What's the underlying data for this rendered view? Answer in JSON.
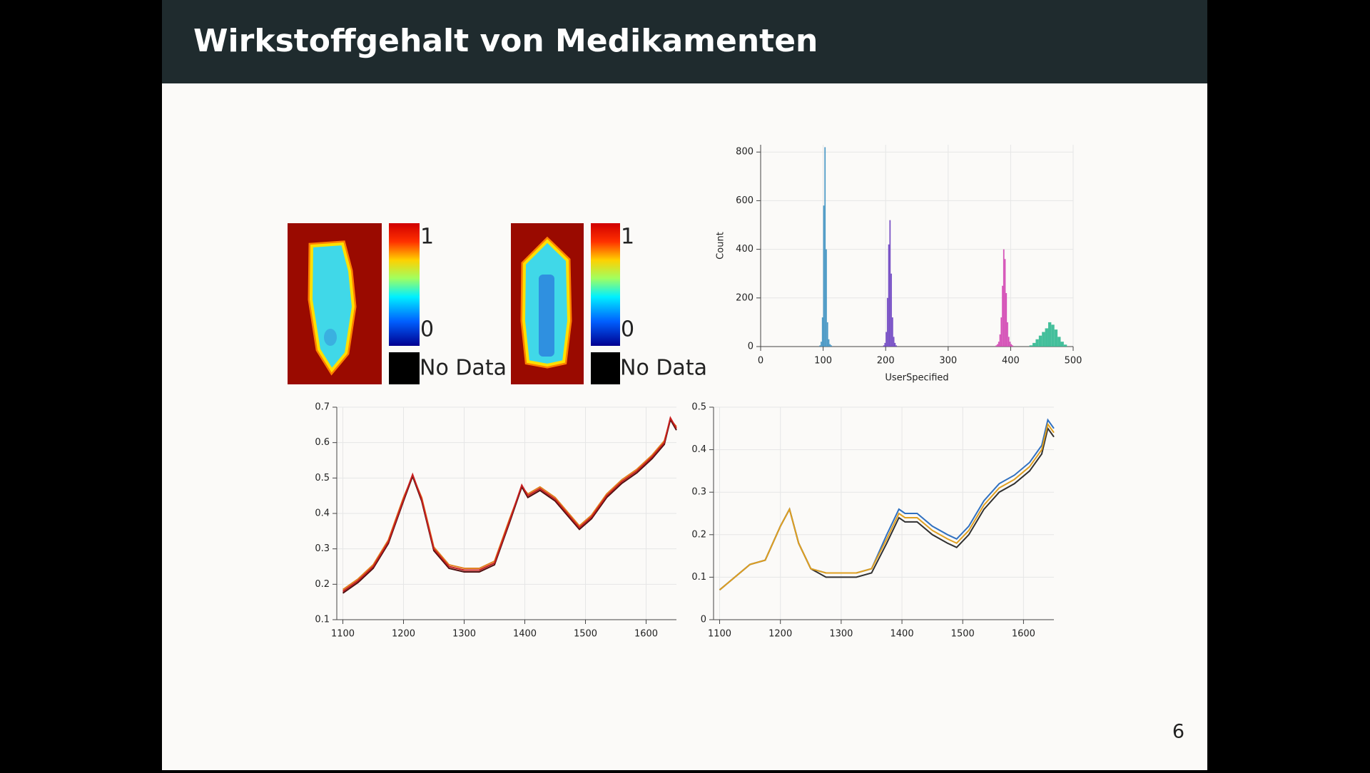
{
  "title": "Wirkstoffgehalt von Medikamenten",
  "page_number": "6",
  "colorbars": [
    {
      "max_label": "1",
      "min_label": "0",
      "nodata_label": "No Data"
    },
    {
      "max_label": "1",
      "min_label": "0",
      "nodata_label": "No Data"
    }
  ],
  "chart_data": [
    {
      "type": "histogram",
      "x_label": "UserSpecified",
      "y_label": "Count",
      "xlim": [
        0,
        500
      ],
      "xticks": [
        0,
        100,
        200,
        300,
        400,
        500
      ],
      "ylim": [
        0,
        830
      ],
      "yticks": [
        0,
        200,
        400,
        600,
        800
      ],
      "grid": true,
      "series": [
        {
          "color": "#3a8fc0",
          "bins": [
            94,
            96,
            98,
            100,
            102,
            104,
            106,
            108,
            110,
            112,
            114
          ],
          "values": [
            5,
            20,
            120,
            580,
            820,
            400,
            100,
            30,
            10,
            5
          ]
        },
        {
          "color": "#6a3fc0",
          "bins": [
            196,
            198,
            200,
            202,
            204,
            206,
            208,
            210,
            212,
            214,
            216,
            218
          ],
          "values": [
            5,
            15,
            60,
            200,
            420,
            520,
            300,
            120,
            40,
            15,
            5
          ]
        },
        {
          "color": "#d040b0",
          "bins": [
            376,
            378,
            380,
            382,
            384,
            386,
            388,
            390,
            392,
            394,
            396,
            398,
            400,
            402,
            404
          ],
          "values": [
            5,
            10,
            20,
            50,
            120,
            250,
            400,
            360,
            220,
            100,
            40,
            20,
            10,
            5
          ]
        },
        {
          "color": "#30b890",
          "bins": [
            430,
            435,
            440,
            445,
            450,
            455,
            460,
            465,
            470,
            475,
            480,
            485,
            490
          ],
          "values": [
            5,
            15,
            30,
            45,
            60,
            75,
            100,
            90,
            70,
            40,
            20,
            8
          ]
        }
      ]
    },
    {
      "type": "line",
      "x": [
        1100,
        1125,
        1150,
        1175,
        1200,
        1215,
        1230,
        1250,
        1275,
        1300,
        1325,
        1350,
        1375,
        1395,
        1405,
        1425,
        1450,
        1475,
        1490,
        1510,
        1535,
        1560,
        1585,
        1610,
        1630,
        1640,
        1650
      ],
      "xlim": [
        1090,
        1650
      ],
      "xticks": [
        1100,
        1200,
        1300,
        1400,
        1500,
        1600
      ],
      "ylim": [
        0.1,
        0.7
      ],
      "yticks": [
        0.1,
        0.2,
        0.3,
        0.4,
        0.5,
        0.6,
        0.7
      ],
      "grid": true,
      "series": [
        {
          "color": "#e08020",
          "values": [
            0.185,
            0.215,
            0.255,
            0.325,
            0.445,
            0.505,
            0.445,
            0.305,
            0.255,
            0.245,
            0.245,
            0.265,
            0.385,
            0.475,
            0.455,
            0.475,
            0.445,
            0.395,
            0.365,
            0.395,
            0.455,
            0.495,
            0.525,
            0.565,
            0.605,
            0.665,
            0.645
          ]
        },
        {
          "color": "#501010",
          "values": [
            0.175,
            0.205,
            0.245,
            0.315,
            0.435,
            0.505,
            0.435,
            0.295,
            0.245,
            0.235,
            0.235,
            0.255,
            0.375,
            0.475,
            0.445,
            0.465,
            0.435,
            0.385,
            0.355,
            0.385,
            0.445,
            0.485,
            0.515,
            0.555,
            0.595,
            0.665,
            0.635
          ]
        },
        {
          "color": "#c82020",
          "values": [
            0.18,
            0.21,
            0.25,
            0.32,
            0.44,
            0.51,
            0.44,
            0.3,
            0.25,
            0.24,
            0.24,
            0.26,
            0.38,
            0.48,
            0.45,
            0.47,
            0.44,
            0.39,
            0.36,
            0.39,
            0.45,
            0.49,
            0.52,
            0.56,
            0.6,
            0.67,
            0.64
          ]
        }
      ]
    },
    {
      "type": "line",
      "x": [
        1100,
        1125,
        1150,
        1175,
        1200,
        1215,
        1230,
        1250,
        1275,
        1300,
        1325,
        1350,
        1375,
        1395,
        1405,
        1425,
        1450,
        1475,
        1490,
        1510,
        1535,
        1560,
        1585,
        1610,
        1630,
        1640,
        1650
      ],
      "xlim": [
        1090,
        1650
      ],
      "xticks": [
        1100,
        1200,
        1300,
        1400,
        1500,
        1600
      ],
      "ylim": [
        0,
        0.5
      ],
      "yticks": [
        0,
        0.1,
        0.2,
        0.3,
        0.4,
        0.5
      ],
      "grid": true,
      "series": [
        {
          "color": "#3070c0",
          "values": [
            0.07,
            0.1,
            0.13,
            0.14,
            0.22,
            0.26,
            0.18,
            0.12,
            0.11,
            0.11,
            0.11,
            0.12,
            0.2,
            0.26,
            0.25,
            0.25,
            0.22,
            0.2,
            0.19,
            0.22,
            0.28,
            0.32,
            0.34,
            0.37,
            0.41,
            0.47,
            0.45
          ]
        },
        {
          "color": "#303030",
          "values": [
            0.07,
            0.1,
            0.13,
            0.14,
            0.22,
            0.26,
            0.18,
            0.12,
            0.1,
            0.1,
            0.1,
            0.11,
            0.18,
            0.24,
            0.23,
            0.23,
            0.2,
            0.18,
            0.17,
            0.2,
            0.26,
            0.3,
            0.32,
            0.35,
            0.39,
            0.45,
            0.43
          ]
        },
        {
          "color": "#e0a020",
          "values": [
            0.07,
            0.1,
            0.13,
            0.14,
            0.22,
            0.26,
            0.18,
            0.12,
            0.11,
            0.11,
            0.11,
            0.12,
            0.19,
            0.25,
            0.24,
            0.24,
            0.21,
            0.19,
            0.18,
            0.21,
            0.27,
            0.31,
            0.33,
            0.36,
            0.4,
            0.46,
            0.44
          ]
        }
      ]
    }
  ]
}
